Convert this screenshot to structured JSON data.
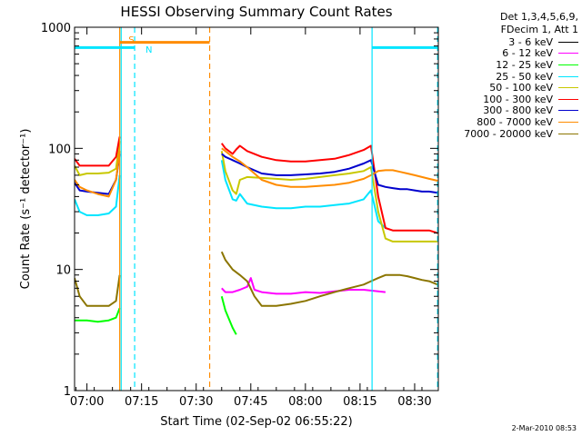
{
  "chart_data": {
    "type": "line",
    "title": "HESSI Observing Summary Count Rates",
    "xlabel": "Start Time (02-Sep-02 06:55:22)",
    "ylabel": "Count Rate (s⁻¹ detector⁻¹)",
    "y_scale": "log",
    "ylim": [
      1,
      1000
    ],
    "xlim_minutes": [
      -3.4,
      96.5
    ],
    "x_ticks": [
      {
        "label": "07:00",
        "minute": 0
      },
      {
        "label": "07:15",
        "minute": 15
      },
      {
        "label": "07:30",
        "minute": 30
      },
      {
        "label": "07:45",
        "minute": 45
      },
      {
        "label": "08:00",
        "minute": 60
      },
      {
        "label": "08:15",
        "minute": 75
      },
      {
        "label": "08:30",
        "minute": 90
      }
    ],
    "y_ticks": [
      {
        "label": "1",
        "value": 1
      },
      {
        "label": "10",
        "value": 10
      },
      {
        "label": "100",
        "value": 100
      },
      {
        "label": "1000",
        "value": 1000
      }
    ],
    "legend_header": [
      "Det 1,3,4,5,6,9,",
      "FDecim 1, Att 1"
    ],
    "legend_placement": "right",
    "annotations": [
      {
        "text": "S",
        "color": "#ff8c00",
        "x_minute": 12.2,
        "level": 800
      },
      {
        "text": "N",
        "color": "#00e5ff",
        "x_minute": 17.0,
        "level": 660
      }
    ],
    "saa_bar": {
      "label": "S",
      "color": "#ff8c00",
      "x": [
        9.0,
        33.7
      ],
      "value": 750
    },
    "night_bars": [
      {
        "label": "N",
        "color": "#00e5ff",
        "x": [
          -3.4,
          13.1
        ],
        "value": 680
      },
      {
        "label": "N",
        "color": "#00e5ff",
        "x": [
          78.3,
          96.5
        ],
        "value": 680
      }
    ],
    "vlines": [
      {
        "x": 9.0,
        "color": "#ff8c00",
        "style": "solid"
      },
      {
        "x": 13.1,
        "color": "#00e5ff",
        "style": "dashed"
      },
      {
        "x": 33.7,
        "color": "#ff8c00",
        "style": "dashed"
      },
      {
        "x": 78.3,
        "color": "#00e5ff",
        "style": "solid"
      },
      {
        "x": 9.4,
        "color": "#00e5ff",
        "style": "solid"
      },
      {
        "x": 96.3,
        "color": "#00e5ff",
        "style": "dashed"
      }
    ],
    "series": [
      {
        "name": "3 - 6 keV",
        "color": "#000000",
        "segments": []
      },
      {
        "name": "6 - 12 keV",
        "color": "#ff00ff",
        "segments": [
          [
            [
              37,
              7
            ],
            [
              38,
              6.5
            ],
            [
              40,
              6.5
            ],
            [
              42,
              6.8
            ],
            [
              44,
              7.2
            ],
            [
              45,
              8.5
            ],
            [
              46,
              6.8
            ],
            [
              48,
              6.5
            ],
            [
              52,
              6.3
            ],
            [
              56,
              6.3
            ],
            [
              60,
              6.5
            ],
            [
              64,
              6.4
            ],
            [
              68,
              6.6
            ],
            [
              72,
              6.8
            ],
            [
              76,
              6.8
            ],
            [
              80,
              6.6
            ],
            [
              82,
              6.5
            ]
          ]
        ]
      },
      {
        "name": "12 - 25 keV",
        "color": "#00ff00",
        "segments": [
          [
            [
              -3.4,
              3.8
            ],
            [
              0,
              3.8
            ],
            [
              3,
              3.7
            ],
            [
              6,
              3.8
            ],
            [
              8,
              4.0
            ],
            [
              9,
              4.8
            ]
          ],
          [
            [
              37,
              6
            ],
            [
              38,
              4.6
            ],
            [
              40,
              3.3
            ],
            [
              41,
              2.9
            ]
          ]
        ]
      },
      {
        "name": "25 - 50 keV",
        "color": "#00e5ff",
        "segments": [
          [
            [
              -3.4,
              38
            ],
            [
              -2,
              30
            ],
            [
              0,
              28
            ],
            [
              3,
              28
            ],
            [
              6,
              29
            ],
            [
              8,
              33
            ],
            [
              9,
              60
            ]
          ],
          [
            [
              37,
              80
            ],
            [
              38,
              55
            ],
            [
              40,
              38
            ],
            [
              41,
              37
            ],
            [
              42,
              42
            ],
            [
              44,
              35
            ],
            [
              48,
              33
            ],
            [
              52,
              32
            ],
            [
              56,
              32
            ],
            [
              60,
              33
            ],
            [
              64,
              33
            ],
            [
              68,
              34
            ],
            [
              72,
              35
            ],
            [
              76,
              38
            ],
            [
              78,
              45
            ],
            [
              80,
              25
            ],
            [
              82,
              22
            ]
          ]
        ]
      },
      {
        "name": "50 - 100 keV",
        "color": "#c8c800",
        "segments": [
          [
            [
              -3.4,
              72
            ],
            [
              -2,
              60
            ],
            [
              0,
              62
            ],
            [
              3,
              62
            ],
            [
              6,
              63
            ],
            [
              8,
              68
            ],
            [
              9,
              115
            ]
          ],
          [
            [
              37,
              95
            ],
            [
              38,
              65
            ],
            [
              40,
              45
            ],
            [
              41,
              42
            ],
            [
              42,
              55
            ],
            [
              44,
              58
            ],
            [
              48,
              57
            ],
            [
              52,
              56
            ],
            [
              56,
              55
            ],
            [
              60,
              56
            ],
            [
              64,
              58
            ],
            [
              68,
              60
            ],
            [
              72,
              62
            ],
            [
              76,
              65
            ],
            [
              78,
              70
            ],
            [
              80,
              30
            ],
            [
              82,
              18
            ],
            [
              84,
              17
            ],
            [
              86,
              17
            ],
            [
              88,
              17
            ],
            [
              90,
              17
            ],
            [
              92,
              17
            ],
            [
              94,
              17
            ],
            [
              96.3,
              17
            ]
          ]
        ]
      },
      {
        "name": "100 - 300 keV",
        "color": "#ff0000",
        "segments": [
          [
            [
              -3.4,
              82
            ],
            [
              -2,
              72
            ],
            [
              0,
              72
            ],
            [
              3,
              72
            ],
            [
              6,
              72
            ],
            [
              8,
              85
            ],
            [
              9,
              125
            ]
          ],
          [
            [
              37,
              110
            ],
            [
              38,
              100
            ],
            [
              40,
              90
            ],
            [
              41,
              98
            ],
            [
              42,
              105
            ],
            [
              44,
              95
            ],
            [
              48,
              85
            ],
            [
              52,
              80
            ],
            [
              56,
              78
            ],
            [
              60,
              78
            ],
            [
              64,
              80
            ],
            [
              68,
              82
            ],
            [
              72,
              88
            ],
            [
              76,
              97
            ],
            [
              78,
              105
            ],
            [
              80,
              40
            ],
            [
              82,
              22
            ],
            [
              84,
              21
            ],
            [
              86,
              21
            ],
            [
              88,
              21
            ],
            [
              90,
              21
            ],
            [
              92,
              21
            ],
            [
              94,
              21
            ],
            [
              96.3,
              20
            ]
          ]
        ]
      },
      {
        "name": "300 - 800 keV",
        "color": "#0000cd",
        "segments": [
          [
            [
              -3.4,
              52
            ],
            [
              -2,
              45
            ],
            [
              0,
              44
            ],
            [
              3,
              43
            ],
            [
              6,
              42
            ],
            [
              8,
              55
            ],
            [
              9,
              90
            ]
          ],
          [
            [
              37,
              90
            ],
            [
              38,
              85
            ],
            [
              40,
              80
            ],
            [
              42,
              75
            ],
            [
              44,
              70
            ],
            [
              48,
              62
            ],
            [
              52,
              60
            ],
            [
              56,
              60
            ],
            [
              60,
              61
            ],
            [
              64,
              62
            ],
            [
              68,
              64
            ],
            [
              72,
              68
            ],
            [
              76,
              75
            ],
            [
              78,
              80
            ],
            [
              80,
              50
            ],
            [
              82,
              48
            ],
            [
              84,
              47
            ],
            [
              86,
              46
            ],
            [
              88,
              46
            ],
            [
              90,
              45
            ],
            [
              92,
              44
            ],
            [
              94,
              44
            ],
            [
              96.3,
              43
            ]
          ]
        ]
      },
      {
        "name": "800 - 7000 keV",
        "color": "#ff8c00",
        "segments": [
          [
            [
              -3.4,
              55
            ],
            [
              -2,
              48
            ],
            [
              0,
              45
            ],
            [
              3,
              42
            ],
            [
              6,
              40
            ],
            [
              8,
              55
            ],
            [
              9,
              95
            ]
          ],
          [
            [
              37,
              100
            ],
            [
              38,
              95
            ],
            [
              40,
              85
            ],
            [
              42,
              78
            ],
            [
              44,
              70
            ],
            [
              48,
              55
            ],
            [
              52,
              50
            ],
            [
              56,
              48
            ],
            [
              60,
              48
            ],
            [
              64,
              49
            ],
            [
              68,
              50
            ],
            [
              72,
              52
            ],
            [
              76,
              56
            ],
            [
              78,
              60
            ],
            [
              80,
              65
            ],
            [
              82,
              66
            ],
            [
              84,
              66
            ],
            [
              86,
              64
            ],
            [
              88,
              62
            ],
            [
              90,
              60
            ],
            [
              92,
              58
            ],
            [
              94,
              56
            ],
            [
              96.3,
              54
            ]
          ]
        ]
      },
      {
        "name": "7000 - 20000 keV",
        "color": "#8b7500",
        "segments": [
          [
            [
              -3.4,
              8.5
            ],
            [
              -2,
              6
            ],
            [
              0,
              5
            ],
            [
              3,
              5
            ],
            [
              6,
              5
            ],
            [
              8,
              5.5
            ],
            [
              9,
              9
            ]
          ],
          [
            [
              37,
              14
            ],
            [
              38,
              12
            ],
            [
              40,
              10
            ],
            [
              42,
              9
            ],
            [
              44,
              8
            ],
            [
              46,
              6
            ],
            [
              48,
              5
            ],
            [
              52,
              5
            ],
            [
              56,
              5.2
            ],
            [
              60,
              5.5
            ],
            [
              64,
              6
            ],
            [
              68,
              6.5
            ],
            [
              72,
              7
            ],
            [
              76,
              7.5
            ],
            [
              78,
              8
            ],
            [
              80,
              8.5
            ],
            [
              82,
              9
            ],
            [
              84,
              9
            ],
            [
              86,
              9
            ],
            [
              88,
              8.8
            ],
            [
              90,
              8.5
            ],
            [
              92,
              8.2
            ],
            [
              94,
              8
            ],
            [
              96.3,
              7.5
            ]
          ]
        ]
      }
    ]
  },
  "footer": {
    "timestamp": "2-Mar-2010 08:53"
  }
}
